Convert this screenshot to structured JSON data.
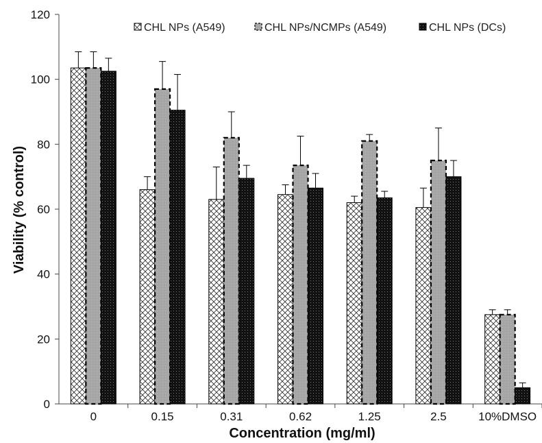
{
  "chart_data": {
    "type": "bar",
    "categories": [
      "0",
      "0.15",
      "0.31",
      "0.62",
      "1.25",
      "2.5",
      "10%DMSO"
    ],
    "series": [
      {
        "name": "CHL NPs (A549)",
        "values": [
          103.5,
          66,
          63,
          64.5,
          62,
          60.5,
          27.5
        ],
        "errors": [
          5,
          4,
          10,
          3,
          2,
          6,
          1.5
        ],
        "pattern": "crosshatch"
      },
      {
        "name": "CHL NPs/NCMPs (A549)",
        "values": [
          103.5,
          97,
          82,
          73.5,
          81,
          75,
          27.5
        ],
        "errors": [
          5,
          8.5,
          8,
          9,
          2,
          10,
          1.5
        ],
        "pattern": "gray-dashed-edge"
      },
      {
        "name": "CHL NPs (DCs)",
        "values": [
          102.5,
          90.5,
          69.5,
          66.5,
          63.5,
          70,
          5
        ],
        "errors": [
          4,
          11,
          4,
          4.5,
          2,
          5,
          1.5
        ],
        "pattern": "black-dotted"
      }
    ],
    "xlabel": "Concentration (mg/ml)",
    "ylabel": "Viability  (% control)",
    "ylim": [
      0,
      120
    ],
    "yticks": [
      "0",
      "20",
      "40",
      "60",
      "80",
      "100",
      "120"
    ],
    "grid": false,
    "legend": "top-right",
    "colors": {
      "series1_fill": "#ffffff",
      "series2_fill": "#a6a6a6",
      "series3_fill": "#111111",
      "stroke": "#000000"
    }
  }
}
